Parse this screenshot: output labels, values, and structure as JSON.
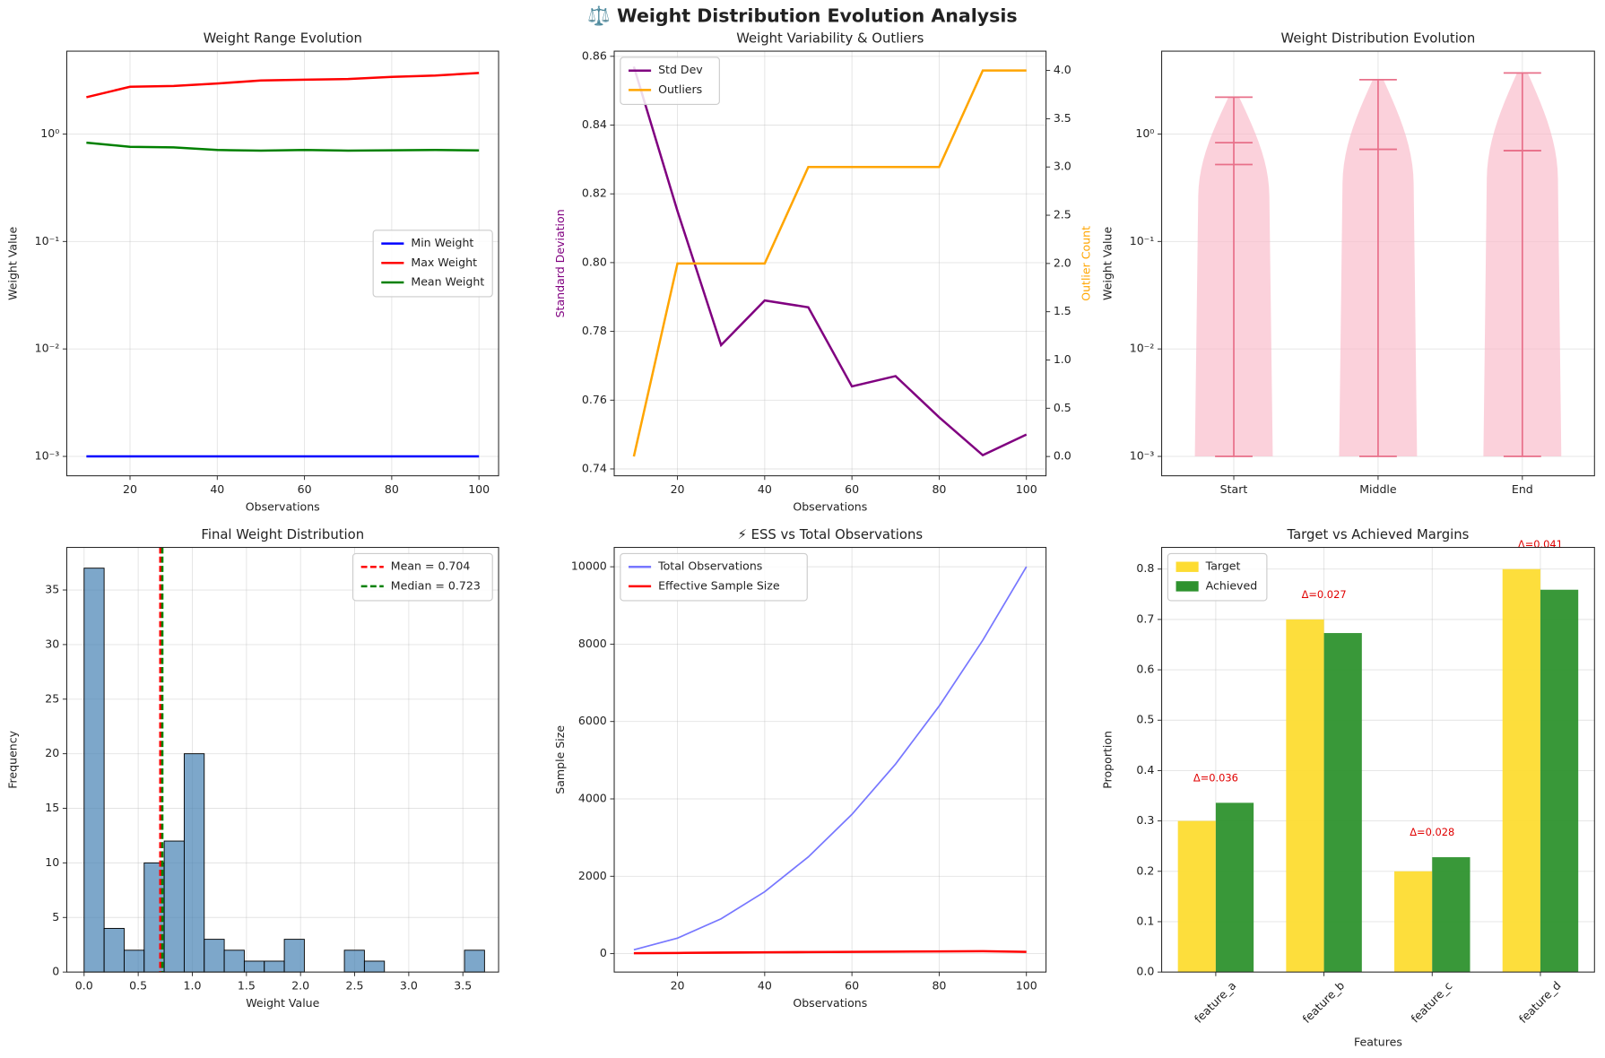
{
  "title": "⚖️ Weight Distribution Evolution Analysis",
  "chart_data": [
    {
      "type": "line",
      "title": "Weight Range Evolution",
      "xlabel": "Observations",
      "ylabel": "Weight Value",
      "x": [
        10,
        20,
        30,
        40,
        50,
        60,
        70,
        80,
        90,
        100
      ],
      "series": [
        {
          "name": "Min Weight",
          "color": "#0000ff",
          "values": [
            0.001,
            0.001,
            0.001,
            0.001,
            0.001,
            0.001,
            0.001,
            0.001,
            0.001,
            0.001
          ]
        },
        {
          "name": "Max Weight",
          "color": "#ff0000",
          "values": [
            2.2,
            2.75,
            2.8,
            2.95,
            3.15,
            3.2,
            3.25,
            3.4,
            3.5,
            3.7
          ]
        },
        {
          "name": "Mean Weight",
          "color": "#008000",
          "values": [
            0.83,
            0.76,
            0.75,
            0.71,
            0.7,
            0.71,
            0.7,
            0.705,
            0.71,
            0.704
          ]
        }
      ],
      "xlim": [
        5.5,
        104.5
      ],
      "xticks": [
        20,
        40,
        60,
        80,
        100
      ],
      "ylim": [
        0.00066,
        5.9
      ],
      "log_y": true,
      "yticks": [
        {
          "value": 0.001,
          "label": "10⁻³"
        },
        {
          "value": 0.01,
          "label": "10⁻²"
        },
        {
          "value": 0.1,
          "label": "10⁻¹"
        },
        {
          "value": 1,
          "label": "10⁰"
        }
      ],
      "grid": true,
      "legend": "center right"
    },
    {
      "type": "line",
      "title": "Weight Variability & Outliers",
      "xlabel": "Observations",
      "ylabel": "Standard Deviation",
      "y2label": "Outlier Count",
      "x": [
        10,
        20,
        30,
        40,
        50,
        60,
        70,
        80,
        90,
        100
      ],
      "series": [
        {
          "name": "Std Dev",
          "color": "#800080",
          "values": [
            0.857,
            0.815,
            0.776,
            0.789,
            0.787,
            0.764,
            0.767,
            0.755,
            0.744,
            0.75
          ]
        },
        {
          "name": "Outliers",
          "color": "#ffa500",
          "axis": "y2",
          "values": [
            0,
            2,
            2,
            2,
            3,
            3,
            3,
            3,
            4,
            4
          ]
        }
      ],
      "xlim": [
        5.5,
        104.5
      ],
      "xticks": [
        20,
        40,
        60,
        80,
        100
      ],
      "ylim": [
        0.738,
        0.8615
      ],
      "yticks": [
        0.74,
        0.76,
        0.78,
        {
          "value": 0.8,
          "label": "0.80"
        },
        0.82,
        0.84,
        0.86
      ],
      "y2lim": [
        -0.2,
        4.2
      ],
      "y2ticks": [
        {
          "value": 0,
          "label": "0.0"
        },
        0.5,
        {
          "value": 1,
          "label": "1.0"
        },
        1.5,
        {
          "value": 2,
          "label": "2.0"
        },
        2.5,
        {
          "value": 3,
          "label": "3.0"
        },
        3.5,
        {
          "value": 4,
          "label": "4.0"
        }
      ],
      "grid": true,
      "legend": "upper left"
    },
    {
      "type": "violin",
      "title": "Weight Distribution Evolution",
      "ylabel": "Weight Value",
      "categories": [
        "Start",
        "Middle",
        "End"
      ],
      "min": [
        0.001,
        0.001,
        0.001
      ],
      "max": [
        2.2,
        3.2,
        3.7
      ],
      "mean": [
        0.83,
        0.72,
        0.7
      ],
      "median": [
        0.52,
        0.72,
        0.7
      ],
      "body_color": "#f9b8c8",
      "line_color": "#e8708a",
      "ylim": [
        0.00066,
        5.9
      ],
      "log_y": true,
      "yticks": [
        {
          "value": 0.001,
          "label": "10⁻³"
        },
        {
          "value": 0.01,
          "label": "10⁻²"
        },
        {
          "value": 0.1,
          "label": "10⁻¹"
        },
        {
          "value": 1,
          "label": "10⁰"
        }
      ],
      "grid": true
    },
    {
      "type": "histogram",
      "title": "Final Weight Distribution",
      "xlabel": "Weight Value",
      "ylabel": "Frequency",
      "bins": [
        0,
        0.185,
        0.37,
        0.555,
        0.74,
        0.925,
        1.11,
        1.295,
        1.48,
        1.665,
        1.85,
        2.035,
        2.22,
        2.405,
        2.59,
        2.775,
        2.96,
        3.145,
        3.33,
        3.515,
        3.7
      ],
      "values": [
        37,
        4,
        2,
        10,
        12,
        20,
        3,
        2,
        1,
        1,
        3,
        0,
        0,
        2,
        1,
        0,
        0,
        0,
        0,
        2
      ],
      "color": "#4682b4",
      "lines": [
        {
          "name": "Mean = 0.704",
          "value": 0.704,
          "color": "#ff0000"
        },
        {
          "name": "Median = 0.723",
          "value": 0.723,
          "color": "#008000"
        }
      ],
      "xlim": [
        -0.16,
        3.83
      ],
      "xticks": [
        {
          "value": 0,
          "label": "0.0"
        },
        0.5,
        {
          "value": 1,
          "label": "1.0"
        },
        1.5,
        {
          "value": 2,
          "label": "2.0"
        },
        2.5,
        {
          "value": 3,
          "label": "3.0"
        },
        3.5
      ],
      "ylim": [
        0,
        38.9
      ],
      "yticks": [
        0,
        5,
        10,
        15,
        20,
        25,
        30,
        35
      ],
      "grid": true,
      "legend": "upper right"
    },
    {
      "type": "line",
      "title": "⚡ ESS vs Total Observations",
      "xlabel": "Observations",
      "ylabel": "Sample Size",
      "x": [
        10,
        20,
        30,
        40,
        50,
        60,
        70,
        80,
        90,
        100
      ],
      "series": [
        {
          "name": "Total Observations",
          "color": "#7777ff",
          "values": [
            100,
            400,
            900,
            1600,
            2500,
            3600,
            4900,
            6400,
            8100,
            10000
          ]
        },
        {
          "name": "Effective Sample Size",
          "color": "#ff0000",
          "values": [
            10,
            18,
            27,
            34,
            40,
            45,
            52,
            58,
            63,
            45
          ]
        }
      ],
      "xlim": [
        5.5,
        104.5
      ],
      "xticks": [
        20,
        40,
        60,
        80,
        100
      ],
      "ylim": [
        -476,
        10500
      ],
      "yticks": [
        0,
        2000,
        4000,
        6000,
        8000,
        10000
      ],
      "grid": true,
      "legend": "upper left"
    },
    {
      "type": "bar",
      "title": "Target vs Achieved Margins",
      "xlabel": "Features",
      "ylabel": "Proportion",
      "categories": [
        "feature_a",
        "feature_b",
        "feature_c",
        "feature_d"
      ],
      "series": [
        {
          "name": "Target",
          "color": "#fddc32",
          "values": [
            0.3,
            0.7,
            0.2,
            0.8
          ]
        },
        {
          "name": "Achieved",
          "color": "#2e922e",
          "values": [
            0.336,
            0.673,
            0.228,
            0.759
          ]
        }
      ],
      "annotations": [
        "Δ=0.036",
        "Δ=0.027",
        "Δ=0.028",
        "Δ=0.041"
      ],
      "ylim": [
        0,
        0.843
      ],
      "yticks": [
        {
          "value": 0,
          "label": "0.0"
        },
        0.1,
        0.2,
        0.3,
        0.4,
        0.5,
        0.6,
        0.7,
        0.8
      ],
      "grid": true,
      "legend": "upper left",
      "rotate_labels": true
    }
  ]
}
